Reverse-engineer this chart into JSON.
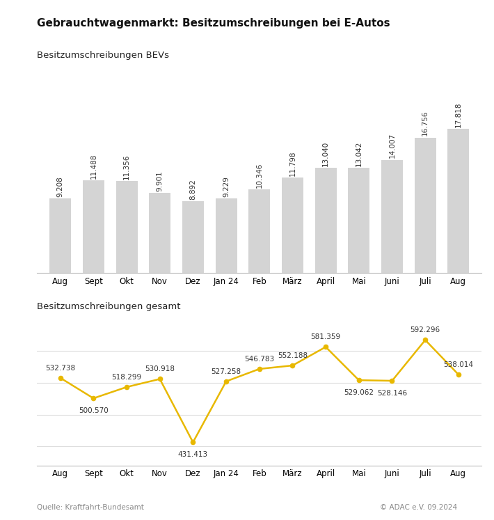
{
  "title": "Gebrauchtwagenmarkt: Besitzumschreibungen bei E-Autos",
  "subtitle_bar": "Besitzumschreibungen BEVs",
  "subtitle_line": "Besitzumschreibungen gesamt",
  "source_left": "Quelle: Kraftfahrt-Bundesamt",
  "source_right": "© ADAC e.V. 09.2024",
  "months": [
    "Aug",
    "Sept",
    "Okt",
    "Nov",
    "Dez",
    "Jan 24",
    "Feb",
    "März",
    "April",
    "Mai",
    "Juni",
    "Juli",
    "Aug"
  ],
  "bar_values": [
    9208,
    11488,
    11356,
    9901,
    8892,
    9229,
    10346,
    11798,
    13040,
    13042,
    14007,
    16756,
    17818
  ],
  "bar_labels": [
    "9.208",
    "11.488",
    "11.356",
    "9.901",
    "8.892",
    "9.229",
    "10.346",
    "11.798",
    "13.040",
    "13.042",
    "14.007",
    "16.756",
    "17.818"
  ],
  "line_values": [
    532738,
    500570,
    518299,
    530918,
    431413,
    527258,
    546783,
    552188,
    581359,
    529062,
    528146,
    592296,
    538014
  ],
  "line_labels": [
    "532.738",
    "500.570",
    "518.299",
    "530.918",
    "431.413",
    "527.258",
    "546.783",
    "552.188",
    "581.359",
    "529.062",
    "528.146",
    "592.296",
    "538.014"
  ],
  "bar_color": "#d4d4d4",
  "line_color": "#e8b800",
  "background_color": "#ffffff",
  "title_fontsize": 11,
  "subtitle_fontsize": 9.5,
  "label_fontsize": 7.5,
  "tick_fontsize": 8.5,
  "source_fontsize": 7.5
}
